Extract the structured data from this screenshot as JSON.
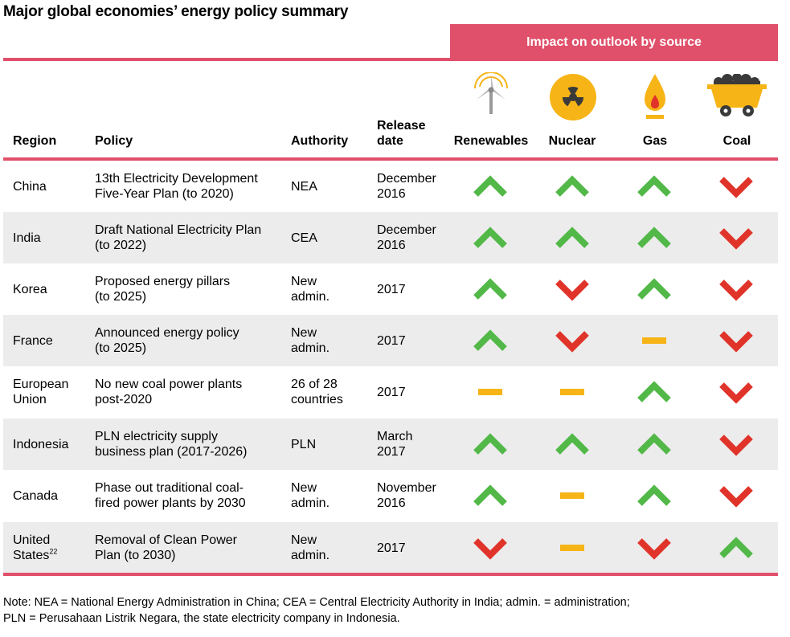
{
  "title": "Major global economies’ energy policy summary",
  "impact_header": "Impact on outlook by source",
  "columns": {
    "region": "Region",
    "policy": "Policy",
    "authority": "Authority",
    "release_line1": "Release",
    "release_line2": "date",
    "renewables": "Renewables",
    "nuclear": "Nuclear",
    "gas": "Gas",
    "coal": "Coal"
  },
  "icons": [
    "wind-turbine-icon",
    "radiation-icon",
    "gas-flame-icon",
    "coal-cart-icon"
  ],
  "colors": {
    "accent": "#e0506a",
    "up": "#52b848",
    "down": "#e0342b",
    "neutral": "#f6b416",
    "shade": "#ececec"
  },
  "rows": [
    {
      "region_l1": "China",
      "region_l2": "",
      "policy_l1": "13th Electricity Development",
      "policy_l2": "Five-Year Plan (to 2020)",
      "authority_l1": "NEA",
      "authority_l2": "",
      "date_l1": "December",
      "date_l2": "2016",
      "renewables": "up",
      "nuclear": "up",
      "gas": "up",
      "coal": "down"
    },
    {
      "region_l1": "India",
      "region_l2": "",
      "policy_l1": "Draft National Electricity Plan",
      "policy_l2": "(to 2022)",
      "authority_l1": "CEA",
      "authority_l2": "",
      "date_l1": "December",
      "date_l2": "2016",
      "renewables": "up",
      "nuclear": "up",
      "gas": "up",
      "coal": "down"
    },
    {
      "region_l1": "Korea",
      "region_l2": "",
      "policy_l1": "Proposed energy pillars",
      "policy_l2": "(to 2025)",
      "authority_l1": "New",
      "authority_l2": "admin.",
      "date_l1": "2017",
      "date_l2": "",
      "renewables": "up",
      "nuclear": "down",
      "gas": "up",
      "coal": "down"
    },
    {
      "region_l1": "France",
      "region_l2": "",
      "policy_l1": "Announced energy policy",
      "policy_l2": "(to 2025)",
      "authority_l1": "New",
      "authority_l2": "admin.",
      "date_l1": "2017",
      "date_l2": "",
      "renewables": "up",
      "nuclear": "down",
      "gas": "neutral",
      "coal": "down"
    },
    {
      "region_l1": "European",
      "region_l2": "Union",
      "policy_l1": "No new coal power plants",
      "policy_l2": "post-2020",
      "authority_l1": "26 of 28",
      "authority_l2": "countries",
      "date_l1": "2017",
      "date_l2": "",
      "renewables": "neutral",
      "nuclear": "neutral",
      "gas": "up",
      "coal": "down"
    },
    {
      "region_l1": "Indonesia",
      "region_l2": "",
      "policy_l1": "PLN electricity supply",
      "policy_l2": "business plan (2017-2026)",
      "authority_l1": "PLN",
      "authority_l2": "",
      "date_l1": "March",
      "date_l2": "2017",
      "renewables": "up",
      "nuclear": "up",
      "gas": "up",
      "coal": "down"
    },
    {
      "region_l1": "Canada",
      "region_l2": "",
      "policy_l1": "Phase out traditional coal-",
      "policy_l2": "fired power plants by 2030",
      "authority_l1": "New",
      "authority_l2": "admin.",
      "date_l1": "November",
      "date_l2": "2016",
      "renewables": "up",
      "nuclear": "neutral",
      "gas": "up",
      "coal": "down"
    },
    {
      "region_l1": "United",
      "region_l2": "States",
      "region_sup": "22",
      "policy_l1": "Removal of Clean Power",
      "policy_l2": "Plan (to 2030)",
      "authority_l1": "New",
      "authority_l2": "admin.",
      "date_l1": "2017",
      "date_l2": "",
      "renewables": "down",
      "nuclear": "neutral",
      "gas": "down",
      "coal": "up"
    }
  ],
  "note_line1": "Note: NEA = National Energy Administration in China; CEA = Central Electricity Authority in India; admin. = administration;",
  "note_line2": "PLN = Perusahaan Listrik Negara, the state electricity company in Indonesia."
}
